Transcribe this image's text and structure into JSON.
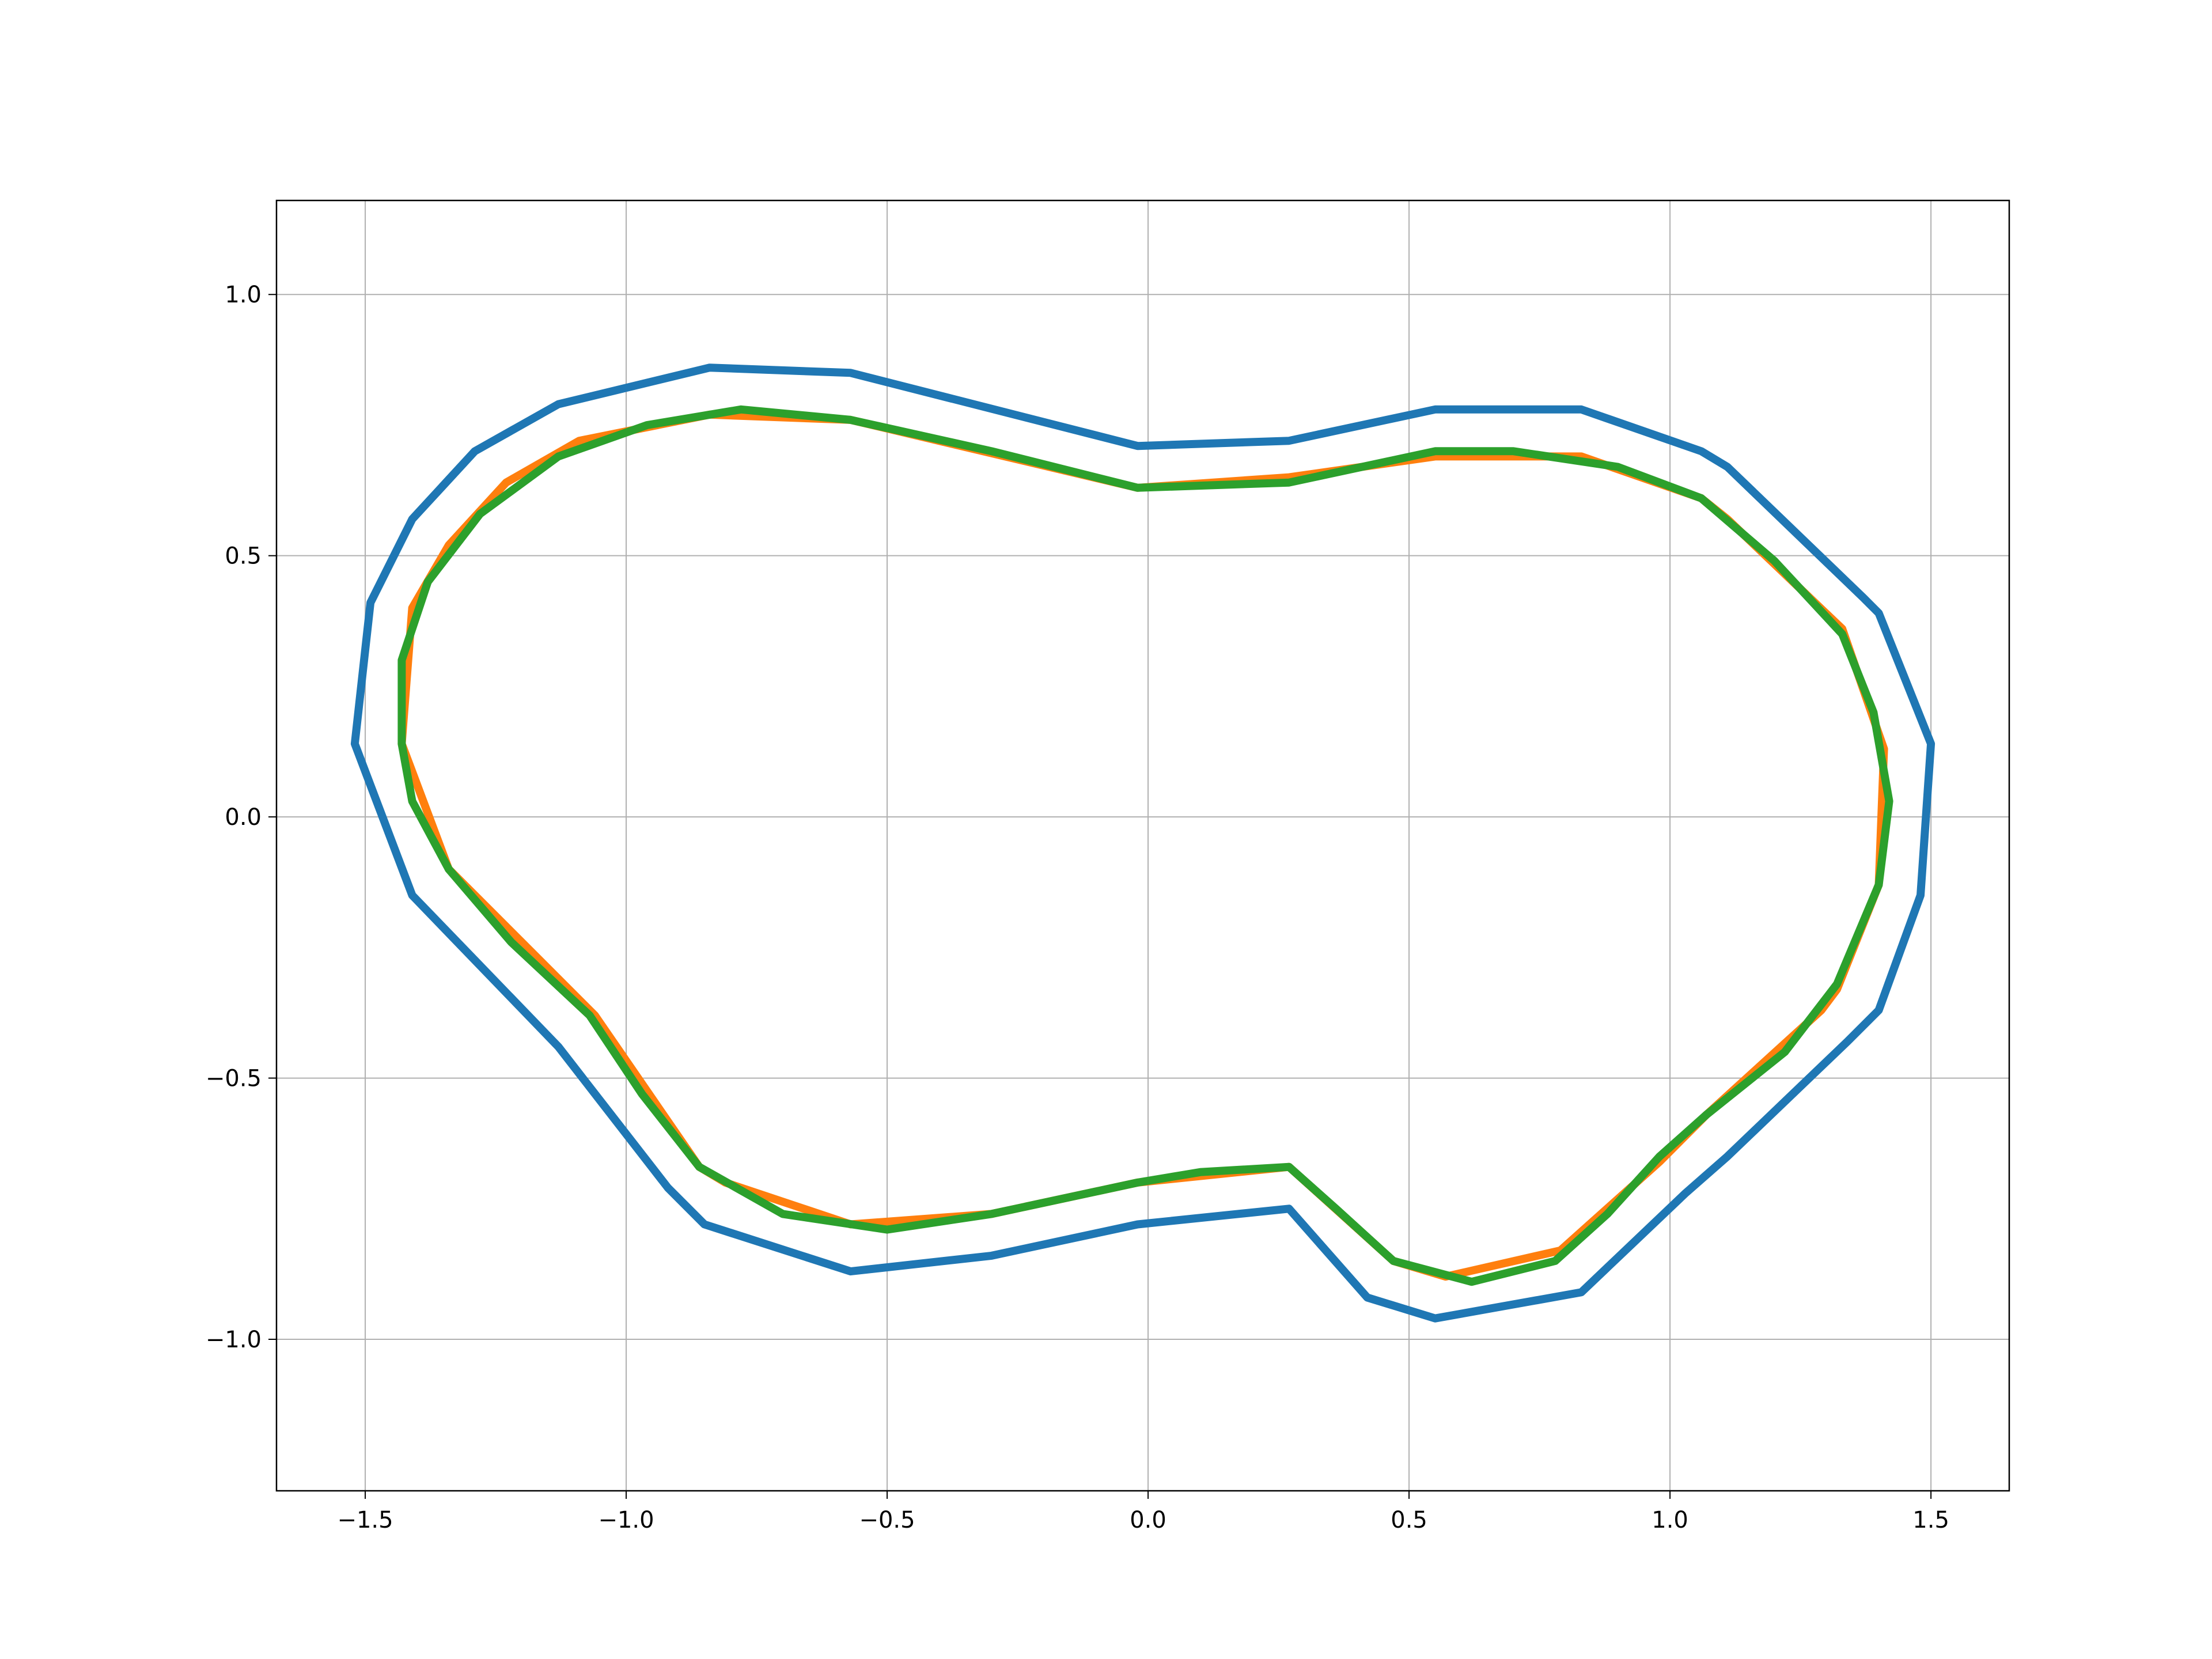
{
  "chart_data": {
    "type": "line",
    "title": "",
    "xlabel": "",
    "ylabel": "",
    "xlim": [
      -1.67,
      1.65
    ],
    "ylim": [
      -1.29,
      1.18
    ],
    "grid": true,
    "xticks": [
      -1.5,
      -1.0,
      -0.5,
      0.0,
      0.5,
      1.0,
      1.5
    ],
    "xtick_labels": [
      "−1.5",
      "−1.0",
      "−0.5",
      "0.0",
      "0.5",
      "1.0",
      "1.5"
    ],
    "yticks": [
      1.0,
      0.5,
      0.0,
      -0.5,
      -1.0
    ],
    "ytick_labels": [
      "1.0",
      "0.5",
      "0.0",
      "−0.5",
      "−1.0"
    ],
    "series": [
      {
        "color": "#1f77b4",
        "points": [
          [
            -1.52,
            0.14
          ],
          [
            -1.49,
            0.41
          ],
          [
            -1.41,
            0.57
          ],
          [
            -1.29,
            0.7
          ],
          [
            -1.13,
            0.79
          ],
          [
            -0.84,
            0.86
          ],
          [
            -0.57,
            0.85
          ],
          [
            -0.02,
            0.71
          ],
          [
            0.27,
            0.72
          ],
          [
            0.55,
            0.78
          ],
          [
            0.83,
            0.78
          ],
          [
            1.06,
            0.7
          ],
          [
            1.11,
            0.67
          ],
          [
            1.37,
            0.42
          ],
          [
            1.4,
            0.39
          ],
          [
            1.5,
            0.14
          ],
          [
            1.48,
            -0.15
          ],
          [
            1.4,
            -0.37
          ],
          [
            1.34,
            -0.43
          ],
          [
            1.11,
            -0.65
          ],
          [
            1.03,
            -0.72
          ],
          [
            0.83,
            -0.91
          ],
          [
            0.55,
            -0.96
          ],
          [
            0.42,
            -0.92
          ],
          [
            0.27,
            -0.75
          ],
          [
            -0.02,
            -0.78
          ],
          [
            -0.3,
            -0.84
          ],
          [
            -0.57,
            -0.87
          ],
          [
            -0.85,
            -0.78
          ],
          [
            -0.92,
            -0.71
          ],
          [
            -1.13,
            -0.44
          ],
          [
            -1.41,
            -0.15
          ],
          [
            -1.52,
            0.14
          ]
        ]
      },
      {
        "color": "#ff7f0e",
        "points": [
          [
            -1.43,
            0.14
          ],
          [
            -1.41,
            0.4
          ],
          [
            -1.34,
            0.52
          ],
          [
            -1.23,
            0.64
          ],
          [
            -1.09,
            0.72
          ],
          [
            -0.84,
            0.77
          ],
          [
            -0.57,
            0.76
          ],
          [
            -0.02,
            0.63
          ],
          [
            0.27,
            0.65
          ],
          [
            0.55,
            0.69
          ],
          [
            0.83,
            0.69
          ],
          [
            1.06,
            0.61
          ],
          [
            1.11,
            0.57
          ],
          [
            1.33,
            0.36
          ],
          [
            1.41,
            0.13
          ],
          [
            1.4,
            -0.13
          ],
          [
            1.32,
            -0.33
          ],
          [
            1.29,
            -0.37
          ],
          [
            1.07,
            -0.57
          ],
          [
            0.98,
            -0.66
          ],
          [
            0.79,
            -0.83
          ],
          [
            0.57,
            -0.88
          ],
          [
            0.47,
            -0.85
          ],
          [
            0.27,
            -0.67
          ],
          [
            -0.02,
            -0.7
          ],
          [
            -0.3,
            -0.76
          ],
          [
            -0.57,
            -0.78
          ],
          [
            -0.81,
            -0.7
          ],
          [
            -0.86,
            -0.67
          ],
          [
            -1.06,
            -0.38
          ],
          [
            -1.34,
            -0.1
          ],
          [
            -1.43,
            0.14
          ]
        ]
      },
      {
        "color": "#2ca02c",
        "points": [
          [
            -1.43,
            0.14
          ],
          [
            -1.43,
            0.3
          ],
          [
            -1.38,
            0.45
          ],
          [
            -1.28,
            0.58
          ],
          [
            -1.13,
            0.69
          ],
          [
            -0.96,
            0.75
          ],
          [
            -0.78,
            0.78
          ],
          [
            -0.57,
            0.76
          ],
          [
            -0.3,
            0.7
          ],
          [
            -0.02,
            0.63
          ],
          [
            0.27,
            0.64
          ],
          [
            0.55,
            0.7
          ],
          [
            0.7,
            0.7
          ],
          [
            0.9,
            0.67
          ],
          [
            1.06,
            0.61
          ],
          [
            1.2,
            0.49
          ],
          [
            1.33,
            0.35
          ],
          [
            1.39,
            0.2
          ],
          [
            1.42,
            0.03
          ],
          [
            1.4,
            -0.13
          ],
          [
            1.32,
            -0.32
          ],
          [
            1.22,
            -0.45
          ],
          [
            1.07,
            -0.57
          ],
          [
            0.98,
            -0.65
          ],
          [
            0.88,
            -0.76
          ],
          [
            0.78,
            -0.85
          ],
          [
            0.62,
            -0.89
          ],
          [
            0.47,
            -0.85
          ],
          [
            0.36,
            -0.75
          ],
          [
            0.27,
            -0.67
          ],
          [
            0.1,
            -0.68
          ],
          [
            -0.02,
            -0.7
          ],
          [
            -0.3,
            -0.76
          ],
          [
            -0.5,
            -0.79
          ],
          [
            -0.7,
            -0.76
          ],
          [
            -0.86,
            -0.67
          ],
          [
            -0.97,
            -0.53
          ],
          [
            -1.07,
            -0.38
          ],
          [
            -1.22,
            -0.24
          ],
          [
            -1.34,
            -0.1
          ],
          [
            -1.41,
            0.03
          ],
          [
            -1.43,
            0.14
          ]
        ]
      }
    ]
  }
}
